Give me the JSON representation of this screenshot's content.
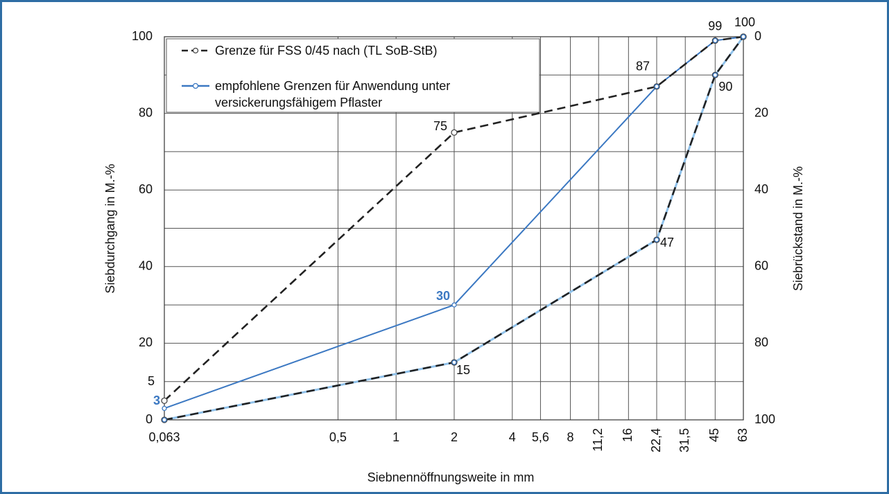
{
  "chart_data": {
    "type": "sieve-curve",
    "ylabel": "Siebdurchgang  in M.-%",
    "y2label": "Siebrückstand  in M.-%",
    "xlabel": "Siebnennöffnungsweite in mm",
    "log_x": true,
    "xlim": [
      0.063,
      63
    ],
    "xticks": [
      {
        "value": 0.063,
        "label": "0,063"
      },
      {
        "value": 0.5,
        "label": "0,5"
      },
      1,
      2,
      4,
      {
        "value": 5.6,
        "label": "5,6"
      },
      8,
      {
        "value": 11.2,
        "label": "11,2"
      },
      16,
      {
        "value": 22.4,
        "label": "22,4"
      },
      {
        "value": 31.5,
        "label": "31,5"
      },
      45,
      63
    ],
    "ylim": [
      0,
      100
    ],
    "yticks": [
      0,
      20,
      40,
      60,
      80,
      100
    ],
    "ygrid": [
      0,
      10,
      20,
      30,
      40,
      50,
      60,
      70,
      80,
      90,
      100
    ],
    "y2lim": [
      100,
      0
    ],
    "y2ticks": [
      0,
      20,
      40,
      60,
      80,
      100
    ],
    "x": [
      0.063,
      2,
      22.4,
      45,
      63
    ],
    "series": [
      {
        "name": "Grenze für FSS 0/45 nach (TL SoB-StB)",
        "color": "#222222",
        "dashed": true,
        "upper": [
          5,
          75,
          87,
          99,
          100
        ],
        "lower": [
          0,
          15,
          47,
          90,
          100
        ]
      },
      {
        "name": "empfohlene Grenzen für Anwendung unter versickerungsfähigem Pflaster",
        "color": "#3b78c2",
        "dashed": false,
        "upper": [
          3,
          30,
          87,
          99,
          100
        ],
        "lower": [
          0,
          15,
          47,
          90,
          100
        ]
      }
    ]
  }
}
